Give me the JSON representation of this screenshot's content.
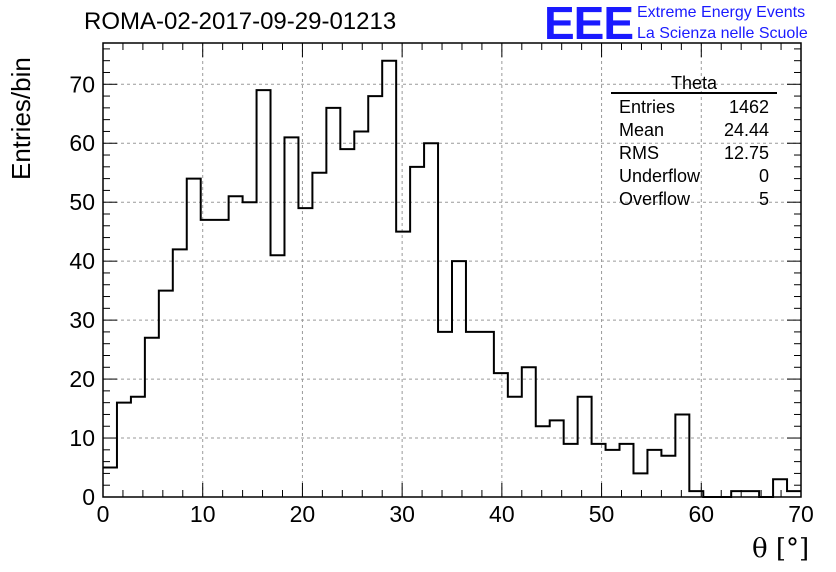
{
  "title": "ROMA-02-2017-09-29-01213",
  "logo": {
    "mark": "EEE",
    "line1": "Extreme Energy Events",
    "line2": "La Scienza nelle Scuole",
    "color": "#1a1aff"
  },
  "stats": {
    "title": "Theta",
    "rows": [
      {
        "label": "Entries",
        "value": "1462"
      },
      {
        "label": "Mean",
        "value": "24.44"
      },
      {
        "label": "RMS",
        "value": "12.75"
      },
      {
        "label": "Underflow",
        "value": "0"
      },
      {
        "label": "Overflow",
        "value": "5"
      }
    ]
  },
  "chart_data": {
    "type": "histogram",
    "xlabel": "θ [°]",
    "ylabel": "Entries/bin",
    "xlim": [
      0,
      70
    ],
    "ylim": [
      0,
      77
    ],
    "bin_width": 1.4,
    "bin_start": 0,
    "x_ticks": [
      "0",
      "10",
      "20",
      "30",
      "40",
      "50",
      "60",
      "70"
    ],
    "y_ticks": [
      "0",
      "10",
      "20",
      "30",
      "40",
      "50",
      "60",
      "70"
    ],
    "grid": true,
    "values": [
      5,
      16,
      17,
      27,
      35,
      42,
      54,
      47,
      47,
      51,
      50,
      69,
      41,
      61,
      49,
      55,
      66,
      59,
      62,
      68,
      74,
      45,
      56,
      60,
      28,
      40,
      28,
      28,
      21,
      17,
      22,
      12,
      13,
      9,
      17,
      9,
      8,
      9,
      4,
      8,
      7,
      14,
      1,
      0,
      0,
      1,
      1,
      0,
      3,
      1
    ],
    "line_color": "#000000"
  }
}
